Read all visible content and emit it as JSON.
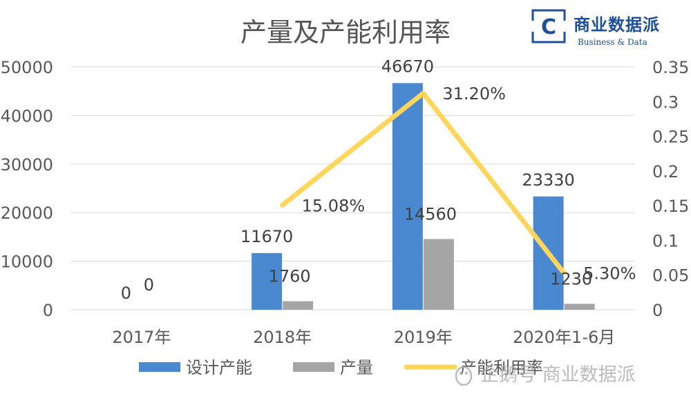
{
  "chart_data": {
    "type": "bar+line",
    "title": "产量及产能利用率",
    "categories": [
      "2017年",
      "2018年",
      "2019年",
      "2020年1-6月"
    ],
    "series": [
      {
        "name": "设计产能",
        "kind": "bar",
        "axis": "left",
        "color": "#4a89cf",
        "values": [
          0,
          11670,
          46670,
          23330
        ],
        "labels": [
          "0",
          "11670",
          "46670",
          "23330"
        ]
      },
      {
        "name": "产量",
        "kind": "bar",
        "axis": "left",
        "color": "#a5a5a5",
        "values": [
          0,
          1760,
          14560,
          1230
        ],
        "labels": [
          "0",
          "1760",
          "14560",
          "1230"
        ]
      },
      {
        "name": "产能利用率",
        "kind": "line",
        "axis": "right",
        "color": "#ffd55a",
        "values": [
          null,
          0.1508,
          0.312,
          0.053
        ],
        "labels": [
          "",
          "15.08%",
          "31.20%",
          "5.30%"
        ]
      }
    ],
    "y_left": {
      "min": 0,
      "max": 50000,
      "ticks": [
        "0",
        "10000",
        "20000",
        "30000",
        "40000",
        "50000"
      ]
    },
    "y_right": {
      "min": 0,
      "max": 0.35,
      "ticks": [
        "0",
        "0.05",
        "0.1",
        "0.15",
        "0.2",
        "0.25",
        "0.3",
        "0.35"
      ]
    },
    "grid": true,
    "legend_position": "bottom"
  },
  "brand": {
    "name": "商业数据派",
    "subtitle": "Business & Data",
    "letter": "C"
  },
  "watermark": {
    "text": "企鹅号 商业数据派"
  }
}
